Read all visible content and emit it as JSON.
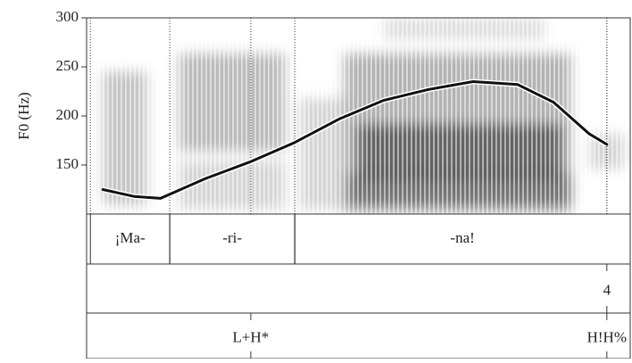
{
  "chart_data": {
    "type": "line",
    "ylabel": "F0 (Hz)",
    "xlim": [
      0,
      1
    ],
    "ylim": [
      100,
      300
    ],
    "yticks": [
      150,
      200,
      250,
      300
    ],
    "x": [
      0.03,
      0.087,
      0.136,
      0.218,
      0.3,
      0.383,
      0.465,
      0.547,
      0.629,
      0.711,
      0.793,
      0.859,
      0.924,
      0.957
    ],
    "series": [
      {
        "color": "#111111",
        "values": [
          125,
          118,
          116,
          136,
          153,
          173,
          197,
          216,
          227,
          235,
          232,
          214,
          182,
          171
        ]
      }
    ],
    "tiers": [
      {
        "intervals": [
          {
            "label": "¡Ma-",
            "start": 0.007,
            "end": 0.153
          },
          {
            "label": "-ri-",
            "start": 0.153,
            "end": 0.383
          },
          {
            "label": "-na!",
            "start": 0.383,
            "end": 1
          }
        ]
      },
      {
        "points": [
          {
            "label": "4",
            "x": 0.957
          }
        ]
      },
      {
        "points": [
          {
            "label": "L+H*",
            "x": 0.302
          },
          {
            "label": "H!H%",
            "x": 0.957
          }
        ]
      }
    ]
  }
}
